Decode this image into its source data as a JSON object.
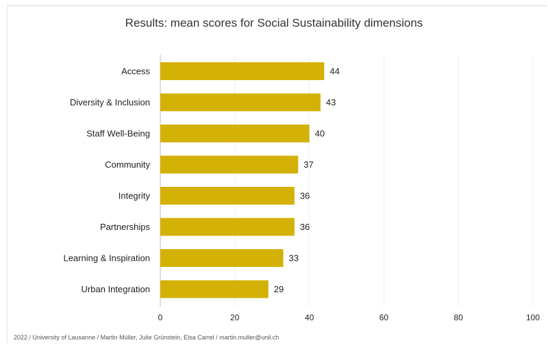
{
  "chart_data": {
    "type": "bar",
    "orientation": "horizontal",
    "title": "Results: mean scores for Social Sustainability dimensions",
    "categories": [
      "Access",
      "Diversity & Inclusion",
      "Staff Well-Being",
      "Community",
      "Integrity",
      "Partnerships",
      "Learning & Inspiration",
      "Urban Integration"
    ],
    "values": [
      44,
      43,
      40,
      37,
      36,
      36,
      33,
      29
    ],
    "value_labels": [
      "44",
      "43",
      "40",
      "37",
      "36",
      "36",
      "33",
      "29"
    ],
    "xlim": [
      0,
      100
    ],
    "xticks": [
      0,
      20,
      40,
      60,
      80,
      100
    ],
    "xtick_labels": [
      "0",
      "20",
      "40",
      "60",
      "80",
      "100"
    ],
    "bar_color": "#d4b106",
    "grid": true,
    "xlabel": "",
    "ylabel": ""
  },
  "credit": "2022 / University of Lausanne / Martin Müller, Julie Grünstein, Elsa Carrel / martin.muller@unil.ch"
}
